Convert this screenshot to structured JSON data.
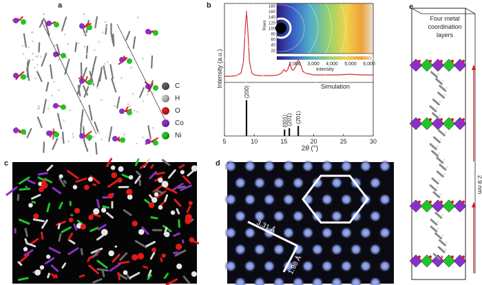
{
  "figure": {
    "panels": {
      "a": {
        "label": "a",
        "legend": [
          {
            "symbol": "C",
            "color": "#5a5a5a"
          },
          {
            "symbol": "H",
            "color": "#bdbdbd"
          },
          {
            "symbol": "O",
            "color": "#e01a1a"
          },
          {
            "symbol": "Co",
            "color": "#8b2fc9"
          },
          {
            "symbol": "Ni",
            "color": "#22c32a"
          }
        ]
      },
      "b": {
        "label": "b",
        "inset": {
          "ylabel": "Rows",
          "yticks": [
            "180",
            "160",
            "140",
            "120",
            "100",
            "80",
            "60",
            "40",
            "20"
          ],
          "xticks": [
            "2,000",
            "3,000",
            "4,000",
            "5,000",
            "6,000"
          ],
          "xlabel": "Intensity"
        },
        "simulation_label": "Simulation"
      },
      "c": {
        "label": "c"
      },
      "d": {
        "label": "d",
        "distances": [
          "3.31 Å",
          "1.98 Å"
        ]
      },
      "e": {
        "label": "e",
        "title_lines": [
          "Four metal",
          "coordination",
          "layers"
        ],
        "spacing": "2.9 nm"
      }
    }
  },
  "chart_data": {
    "type": "line",
    "xlabel": "2θ (°)",
    "ylabel": "Intensity (a.u.)",
    "xlim": [
      5,
      30
    ],
    "xticks": [
      "5",
      "10",
      "15",
      "20",
      "25",
      "30"
    ],
    "series": [
      {
        "x": [
          5,
          6,
          7,
          7.8,
          8.2,
          8.5,
          8.7,
          8.9,
          9.2,
          9.6,
          10,
          11,
          12,
          13,
          14,
          14.6,
          15.0,
          15.3,
          15.6,
          16.0,
          16.3,
          16.6,
          17.0,
          17.4,
          17.8,
          18.2,
          18.8,
          19.5,
          20,
          22,
          24,
          26,
          28,
          30
        ],
        "y": [
          0.03,
          0.03,
          0.04,
          0.08,
          0.25,
          0.75,
          1.0,
          0.75,
          0.25,
          0.08,
          0.05,
          0.04,
          0.04,
          0.04,
          0.05,
          0.08,
          0.13,
          0.1,
          0.12,
          0.22,
          0.13,
          0.12,
          0.18,
          0.28,
          0.2,
          0.1,
          0.07,
          0.06,
          0.05,
          0.05,
          0.05,
          0.06,
          0.05,
          0.05
        ]
      }
    ],
    "simulation": {
      "peaks": [
        {
          "x": 8.7,
          "height": 1.0,
          "label": "(200)"
        },
        {
          "x": 15.1,
          "height": 0.18,
          "label": "(001)"
        },
        {
          "x": 15.9,
          "height": 0.22,
          "label": "(201)"
        },
        {
          "x": 17.4,
          "height": 0.28,
          "label": "(2̄01)"
        }
      ]
    }
  }
}
